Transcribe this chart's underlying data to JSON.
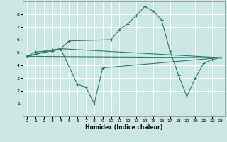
{
  "xlabel": "Humidex (Indice chaleur)",
  "xlim": [
    -0.5,
    23.5
  ],
  "ylim": [
    0,
    9
  ],
  "xticks": [
    0,
    1,
    2,
    3,
    4,
    5,
    6,
    7,
    8,
    9,
    10,
    11,
    12,
    13,
    14,
    15,
    16,
    17,
    18,
    19,
    20,
    21,
    22,
    23
  ],
  "yticks": [
    1,
    2,
    3,
    4,
    5,
    6,
    7,
    8
  ],
  "bg_color": "#cce8e4",
  "line_color": "#2e7d6e",
  "grid_color": "#ffffff",
  "lines": [
    {
      "x": [
        0,
        1,
        2,
        3,
        4,
        5,
        10,
        11,
        12,
        13,
        14,
        15,
        16,
        17,
        18,
        19,
        20,
        21,
        22,
        23
      ],
      "y": [
        4.7,
        5.05,
        5.1,
        5.2,
        5.3,
        5.9,
        6.0,
        6.8,
        7.25,
        7.9,
        8.6,
        8.25,
        7.55,
        5.1,
        3.25,
        1.55,
        3.0,
        4.15,
        4.45,
        4.6
      ]
    },
    {
      "x": [
        0,
        23
      ],
      "y": [
        4.7,
        4.6
      ]
    },
    {
      "x": [
        0,
        4,
        23
      ],
      "y": [
        4.7,
        5.3,
        4.6
      ]
    },
    {
      "x": [
        0,
        2,
        3,
        4,
        6,
        7,
        8,
        9,
        23
      ],
      "y": [
        4.7,
        5.05,
        5.1,
        5.3,
        2.5,
        2.3,
        1.0,
        3.8,
        4.6
      ]
    }
  ]
}
